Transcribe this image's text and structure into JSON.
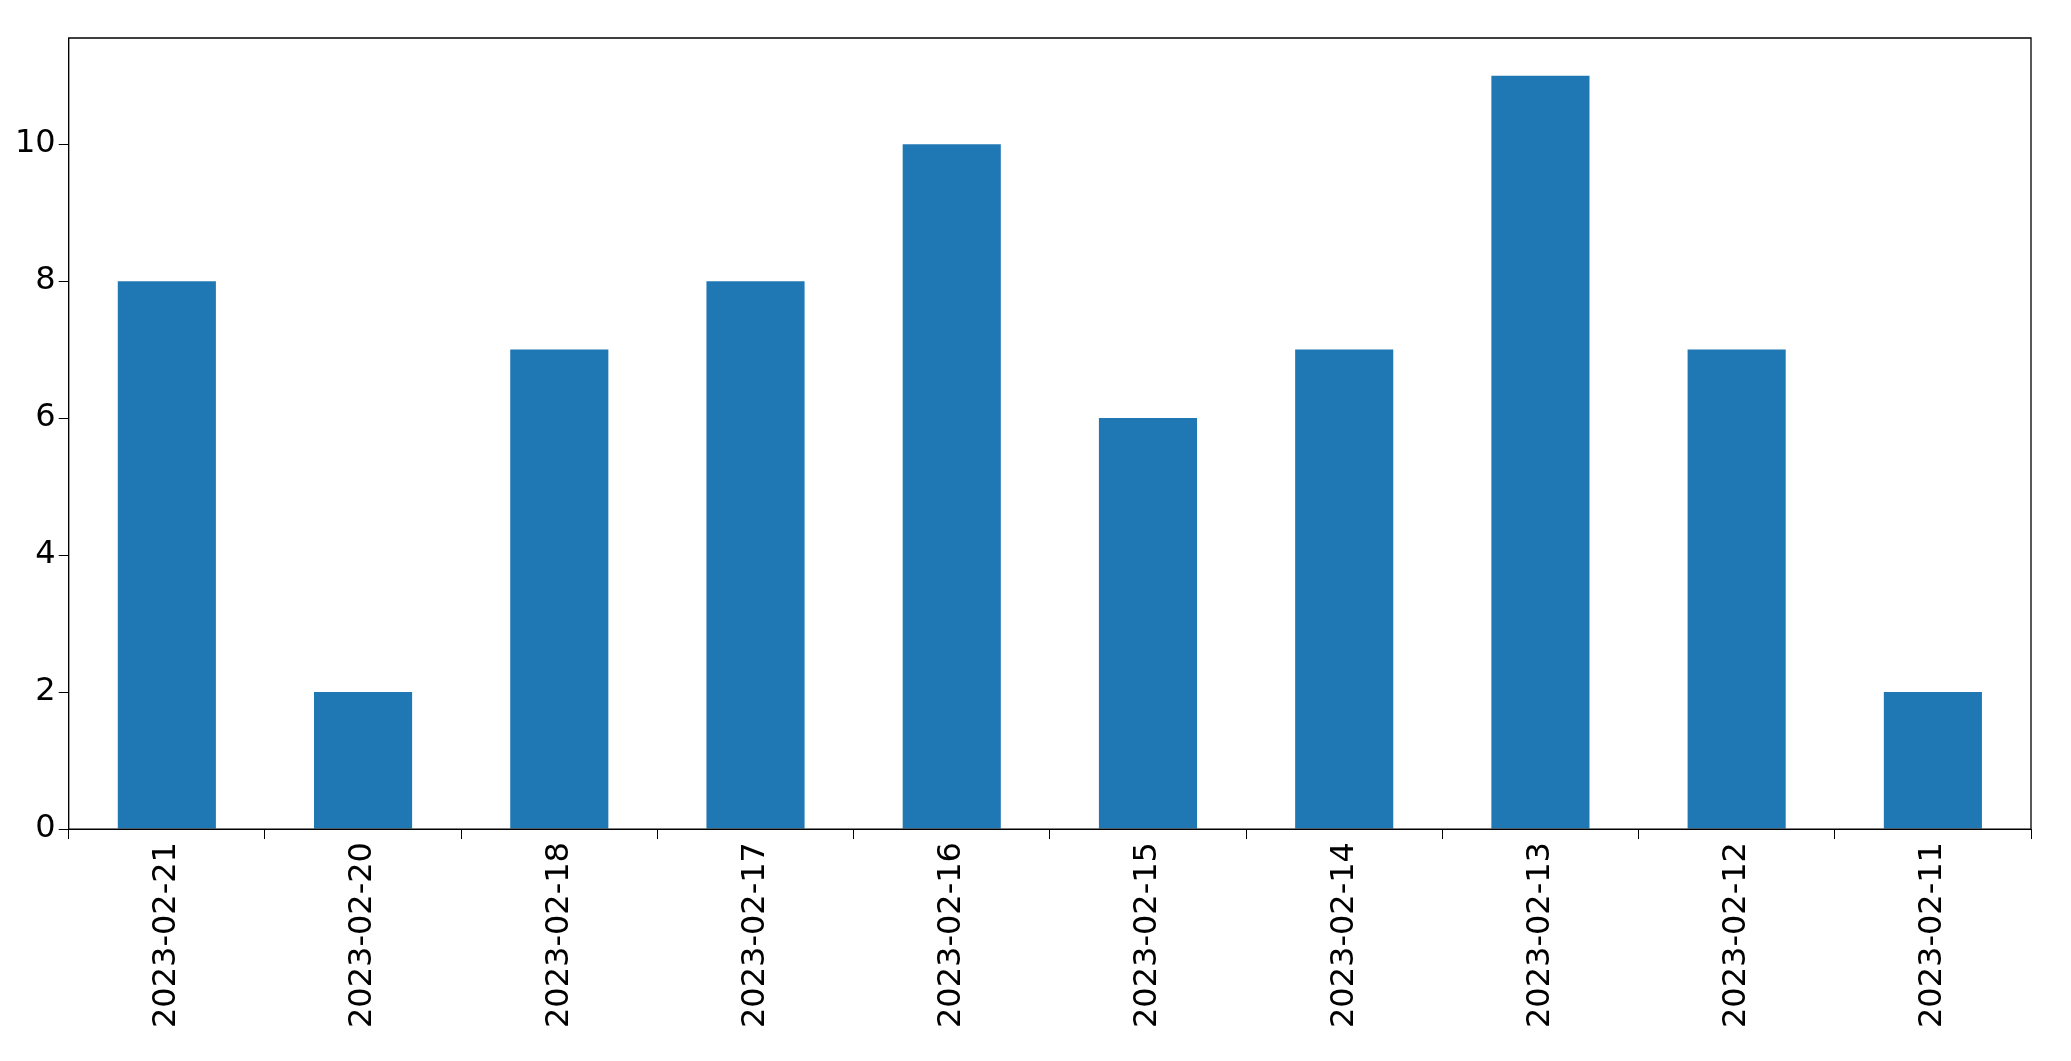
{
  "chart_data": {
    "type": "bar",
    "categories": [
      "2023-02-21",
      "2023-02-20",
      "2023-02-18",
      "2023-02-17",
      "2023-02-16",
      "2023-02-15",
      "2023-02-14",
      "2023-02-13",
      "2023-02-12",
      "2023-02-11"
    ],
    "values": [
      8,
      2,
      7,
      8,
      10,
      6,
      7,
      11,
      7,
      2
    ],
    "color": "#1f77b4",
    "ylim": [
      0,
      11.55
    ],
    "yticks": [
      0,
      2,
      4,
      6,
      8,
      10
    ],
    "grid": false,
    "legend": false
  }
}
